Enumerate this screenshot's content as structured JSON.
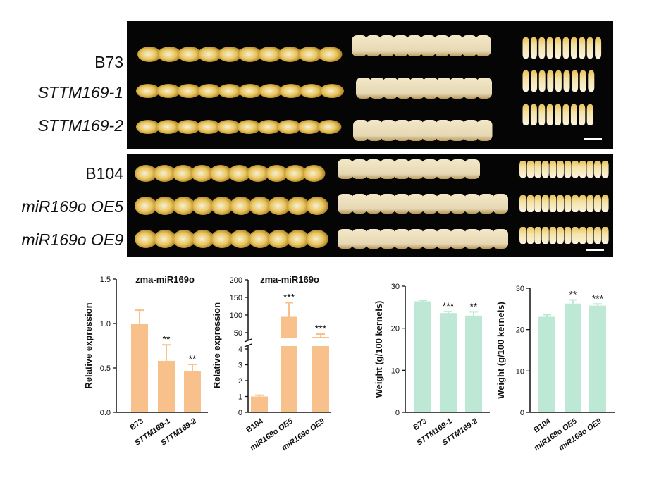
{
  "panel_a": {
    "rows": [
      {
        "label": "B73",
        "italic": false
      },
      {
        "label": "STTM169-1",
        "italic": true
      },
      {
        "label": "STTM169-2",
        "italic": true
      },
      {
        "label": "B104",
        "italic": false
      },
      {
        "label": "miR169o OE5",
        "italic": true
      },
      {
        "label": "miR169o OE9",
        "italic": true
      }
    ],
    "colors": {
      "background": "#050505",
      "kernel": "#e8c45a",
      "kernel_side": "#f4e8c8",
      "scale_bar": "#ffffff"
    }
  },
  "chart_data": [
    {
      "type": "bar",
      "title": "zma-miR169o",
      "ylabel": "Relative expression",
      "categories": [
        "B73",
        "STTM169-1",
        "STTM169-2"
      ],
      "values": [
        1.0,
        0.58,
        0.46
      ],
      "errors": [
        0.15,
        0.18,
        0.08
      ],
      "significance": [
        "",
        "**",
        "**"
      ],
      "yticks": [
        "0.0",
        "0.5",
        "1.0",
        "1.5"
      ],
      "ylim": [
        0,
        1.5
      ],
      "color": "#f8c08a"
    },
    {
      "type": "bar",
      "title": "zma-miR169o",
      "ylabel": "Relative expression",
      "categories": [
        "B104",
        "miR169o OE5",
        "miR169o OE9"
      ],
      "values": [
        1.0,
        95,
        38
      ],
      "errors": [
        0.08,
        40,
        8
      ],
      "significance": [
        "",
        "***",
        "***"
      ],
      "yticks_lower": [
        "0",
        "1",
        "2",
        "3",
        "4"
      ],
      "yticks_upper": [
        "50",
        "100",
        "150",
        "200"
      ],
      "axis_break": [
        4,
        0
      ],
      "color": "#f8c08a"
    },
    {
      "type": "bar",
      "title": "",
      "ylabel": "Weight (g/100 kernels)",
      "categories": [
        "B73",
        "STTM169-1",
        "STTM169-2"
      ],
      "values": [
        26.4,
        23.6,
        23.0
      ],
      "errors": [
        0.25,
        0.35,
        0.9
      ],
      "significance": [
        "",
        "***",
        "**"
      ],
      "yticks": [
        "0",
        "10",
        "20",
        "30"
      ],
      "ylim": [
        0,
        30
      ],
      "color": "#bde8d6"
    },
    {
      "type": "bar",
      "title": "",
      "ylabel": "Weight (g/100 kernels)",
      "categories": [
        "B104",
        "miR169o OE5",
        "miR169o OE9"
      ],
      "values": [
        23.1,
        26.3,
        25.8
      ],
      "errors": [
        0.5,
        0.9,
        0.4
      ],
      "significance": [
        "",
        "**",
        "***"
      ],
      "yticks": [
        "0",
        "10",
        "20",
        "30"
      ],
      "ylim": [
        0,
        30
      ],
      "color": "#bde8d6"
    }
  ]
}
